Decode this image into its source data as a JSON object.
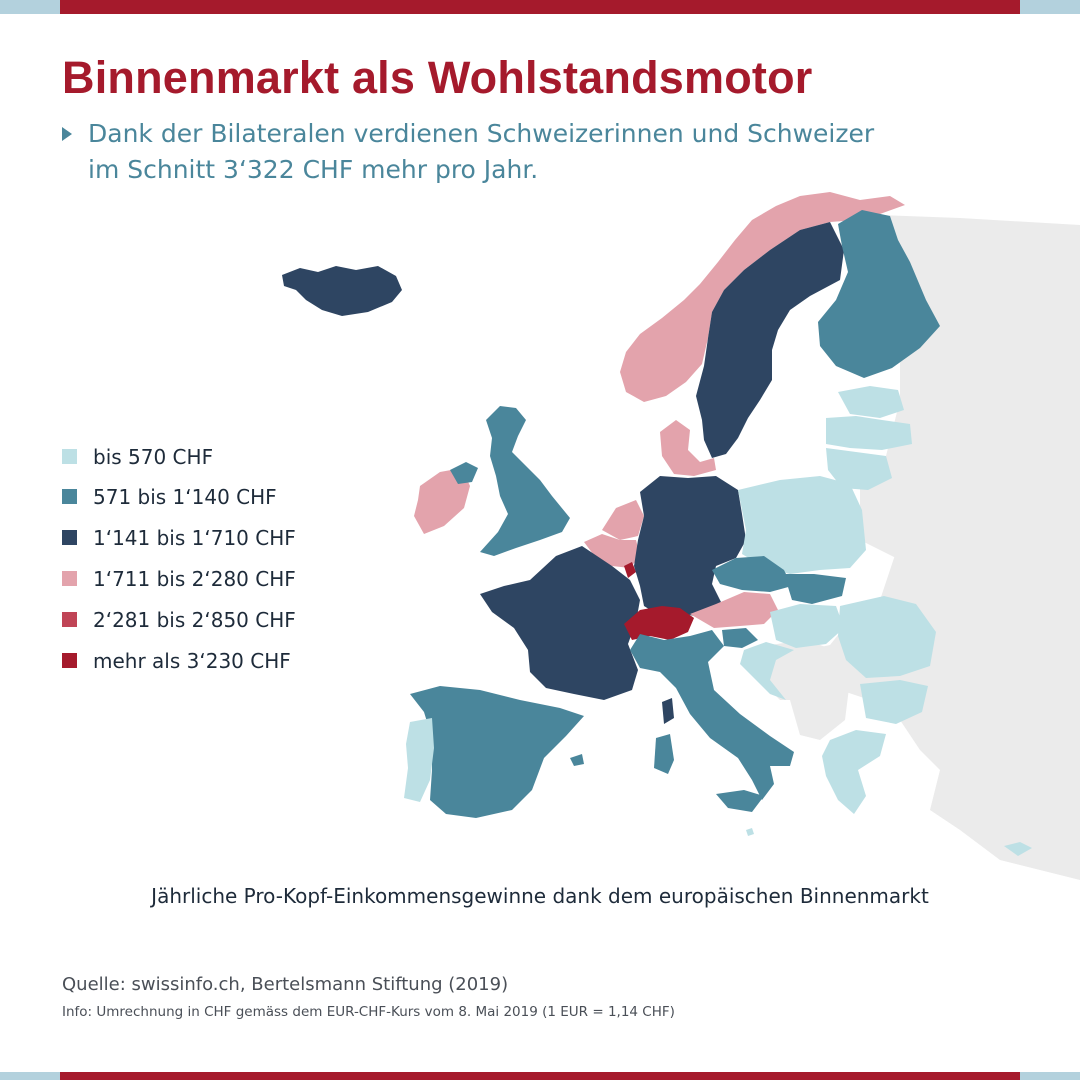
{
  "header": {
    "title": "Binnenmarkt als Wohlstandsmotor",
    "subtitle": "Dank der Bilateralen verdienen Schweizerinnen und Schweizer im Schnitt 3‘322 CHF mehr pro Jahr."
  },
  "legend": [
    {
      "label": "bis 570 CHF",
      "color": "#bde0e5"
    },
    {
      "label": "571 bis 1‘140 CHF",
      "color": "#4a869b"
    },
    {
      "label": "1‘141 bis 1‘710 CHF",
      "color": "#2e4562"
    },
    {
      "label": "1‘711 bis 2‘280 CHF",
      "color": "#e3a3ac"
    },
    {
      "label": "2‘281 bis 2‘850 CHF",
      "color": "#c04456"
    },
    {
      "label": "mehr als 3‘230 CHF",
      "color": "#a51a2c"
    }
  ],
  "caption": "Jährliche Pro-Kopf-Einkommensgewinne dank dem europäischen Binnenmarkt",
  "source": "Quelle:  swissinfo.ch, Bertelsmann Stiftung (2019)",
  "info": "Info: Umrechnung in CHF gemäss dem EUR-CHF-Kurs vom 8. Mai 2019 (1 EUR = 1,14 CHF)",
  "colors": {
    "brand_red": "#a51a2c",
    "light_blue": "#b3d1dd",
    "non_member": "#ebebeb"
  }
}
